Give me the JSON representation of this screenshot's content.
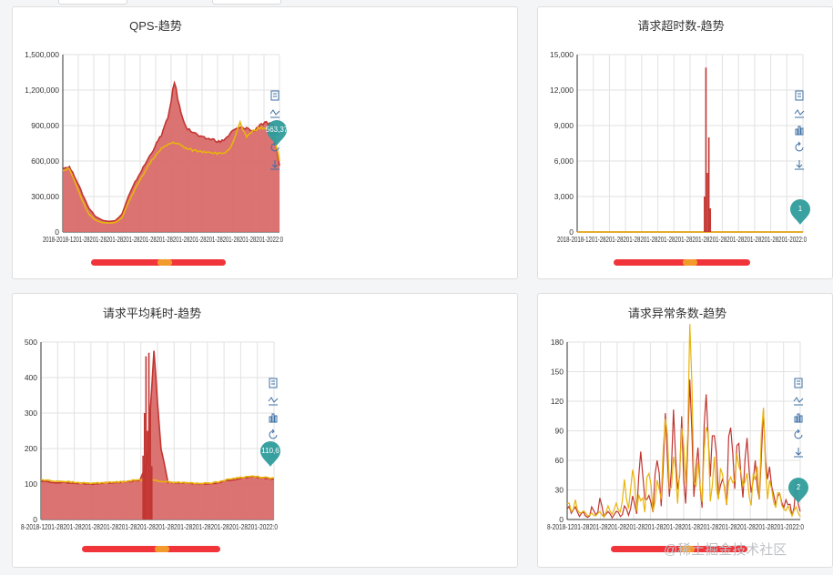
{
  "toolbox_icons": [
    "data-view-icon",
    "line-chart-icon",
    "bar-chart-icon",
    "restore-icon",
    "download-icon"
  ],
  "colors": {
    "series_red": "#c23531",
    "series_yellow": "#e8b40c",
    "pin": "#2f9c9c",
    "grid": "#dcdcdc"
  },
  "watermark": "@稀土掘金技术社区",
  "chart_data": [
    {
      "id": "qps",
      "type": "area",
      "title": "QPS-趋势",
      "ylim": [
        0,
        1500000
      ],
      "yticks": [
        "0",
        "300,000",
        "600,000",
        "900,000",
        "1,200,000",
        "1,500,000"
      ],
      "x_tick_text": "2018-2018-1201-28201-28201-28201-28201-28201-28201-28201-28201-28201-28201-28201-2022:0",
      "pin_label": "563,37",
      "series": [
        {
          "color": "red",
          "fill": true,
          "values": [
            540000,
            550000,
            450000,
            320000,
            200000,
            130000,
            100000,
            90000,
            95000,
            150000,
            300000,
            420000,
            520000,
            620000,
            720000,
            820000,
            960000,
            1270000,
            1000000,
            870000,
            840000,
            800000,
            790000,
            780000,
            760000,
            800000,
            860000,
            880000,
            880000,
            850000,
            910000,
            920000,
            900000,
            560000
          ]
        },
        {
          "color": "yellow",
          "fill": false,
          "values": [
            520000,
            540000,
            400000,
            260000,
            150000,
            100000,
            80000,
            75000,
            80000,
            120000,
            250000,
            360000,
            460000,
            560000,
            640000,
            700000,
            740000,
            760000,
            730000,
            700000,
            690000,
            680000,
            680000,
            670000,
            660000,
            680000,
            760000,
            920000,
            800000,
            850000,
            880000,
            880000,
            870000,
            600000
          ]
        }
      ]
    },
    {
      "id": "timeout",
      "type": "area",
      "title": "请求超时数-趋势",
      "ylim": [
        0,
        15000
      ],
      "yticks": [
        "0",
        "3,000",
        "6,000",
        "9,000",
        "12,000",
        "15,000"
      ],
      "x_tick_text": "2018-2018-1201-28201-28201-28201-28201-28201-28201-28201-28201-28201-28201-28201-2022:0",
      "pin_label": "1",
      "series": [
        {
          "color": "red",
          "fill": true,
          "values": [
            0,
            0,
            0,
            0,
            0,
            0,
            0,
            0,
            0,
            0,
            0,
            0,
            0,
            0,
            0,
            0,
            0,
            0,
            0,
            0,
            0,
            0,
            0,
            0,
            0,
            0,
            0,
            0,
            0,
            0,
            0,
            0,
            0,
            0,
            0,
            0,
            0,
            0,
            0,
            0,
            0,
            0,
            0,
            0,
            0,
            0,
            0,
            0,
            0,
            0,
            0,
            0,
            0,
            0,
            0,
            0,
            0,
            0,
            0,
            0,
            0,
            0,
            0,
            0,
            0,
            0,
            0,
            0,
            0,
            0,
            0,
            0,
            0,
            0,
            0,
            0,
            0,
            0,
            0,
            0,
            0,
            0,
            0,
            0,
            0,
            0,
            0,
            0,
            0,
            0,
            0,
            0,
            0,
            0,
            0,
            0,
            0,
            0,
            0,
            0,
            0,
            0,
            0,
            0,
            0,
            0,
            0,
            0,
            0,
            0,
            0,
            0,
            0,
            0,
            0,
            0,
            0,
            0,
            0,
            0,
            0,
            0,
            0,
            0,
            0,
            0,
            0,
            0,
            0,
            0,
            0,
            0,
            0,
            0,
            0,
            0,
            0,
            0,
            0,
            0,
            0,
            0,
            0,
            0,
            0,
            0,
            0,
            0,
            0,
            0,
            0,
            0,
            0,
            0,
            0,
            0,
            0,
            0,
            0,
            0,
            0,
            0,
            0,
            0,
            0,
            0,
            0,
            0,
            0,
            0,
            0,
            0,
            0,
            0,
            0,
            0,
            0,
            0,
            0,
            0,
            0,
            0,
            0,
            0,
            0,
            0,
            0,
            0,
            0,
            0,
            0,
            0,
            0,
            0,
            0,
            0,
            0,
            0,
            0,
            0
          ]
        },
        {
          "color": "yellow",
          "fill": false,
          "values": [
            0,
            0,
            0,
            0,
            0,
            0,
            0,
            0,
            0,
            0
          ]
        }
      ],
      "spikes": [
        {
          "at": 0.58,
          "values": [
            3000,
            13900,
            5000,
            8000,
            2000
          ]
        }
      ]
    },
    {
      "id": "latency",
      "type": "area",
      "title": "请求平均耗时-趋势",
      "ylim": [
        0,
        500
      ],
      "yticks": [
        "0",
        "100",
        "200",
        "300",
        "400",
        "500"
      ],
      "x_tick_text": "8-2018-1201-28201-28201-28201-28201-28201-28201-28201-28201-28201-28201-28201-2022:0",
      "pin_label": "110,6",
      "series": [
        {
          "color": "red",
          "fill": true,
          "values": [
            108,
            106,
            104,
            105,
            103,
            102,
            101,
            100,
            101,
            103,
            104,
            105,
            106,
            108,
            110,
            160,
            470,
            200,
            105,
            104,
            103,
            102,
            101,
            100,
            101,
            103,
            108,
            112,
            115,
            118,
            120,
            118,
            116,
            114
          ]
        },
        {
          "color": "yellow",
          "fill": false,
          "values": [
            112,
            110,
            108,
            108,
            106,
            104,
            103,
            102,
            103,
            104,
            105,
            106,
            108,
            110,
            112,
            112,
            110,
            108,
            106,
            105,
            104,
            103,
            102,
            102,
            103,
            106,
            110,
            115,
            118,
            120,
            122,
            120,
            118,
            116
          ]
        }
      ],
      "spikes": [
        {
          "at": 0.46,
          "values": [
            180,
            300,
            460,
            250,
            470,
            320,
            150
          ]
        }
      ]
    },
    {
      "id": "errors",
      "type": "line",
      "title": "请求异常条数-趋势",
      "ylim": [
        0,
        180
      ],
      "yticks": [
        "0",
        "30",
        "60",
        "90",
        "120",
        "150",
        "180"
      ],
      "x_tick_text": "8-2018-1201-28201-28201-28201-28201-28201-28201-28201-28201-28201-28201-28201-2022:0",
      "pin_label": "2",
      "series": [
        {
          "color": "red",
          "fill": false,
          "values": [
            15,
            5,
            12,
            3,
            8,
            2,
            10,
            4,
            18,
            3,
            6,
            2,
            9,
            3,
            12,
            5,
            20,
            8,
            70,
            15,
            40,
            10,
            60,
            12,
            90,
            20,
            120,
            30,
            80,
            15,
            110,
            25,
            70,
            18,
            120,
            40,
            85,
            20,
            60,
            15,
            120,
            35,
            90,
            25,
            70,
            30,
            60,
            20,
            80,
            30,
            50,
            15,
            40,
            10,
            20,
            5,
            30,
            8
          ]
        },
        {
          "color": "yellow",
          "fill": false,
          "values": [
            18,
            8,
            15,
            5,
            10,
            3,
            6,
            4,
            8,
            2,
            10,
            5,
            15,
            8,
            45,
            10,
            70,
            12,
            30,
            8,
            60,
            10,
            40,
            15,
            100,
            25,
            55,
            20,
            80,
            30,
            165,
            40,
            60,
            20,
            100,
            25,
            70,
            15,
            60,
            20,
            50,
            30,
            80,
            25,
            45,
            15,
            60,
            20,
            110,
            30,
            40,
            10,
            30,
            8,
            15,
            5,
            10,
            3
          ]
        }
      ]
    }
  ]
}
